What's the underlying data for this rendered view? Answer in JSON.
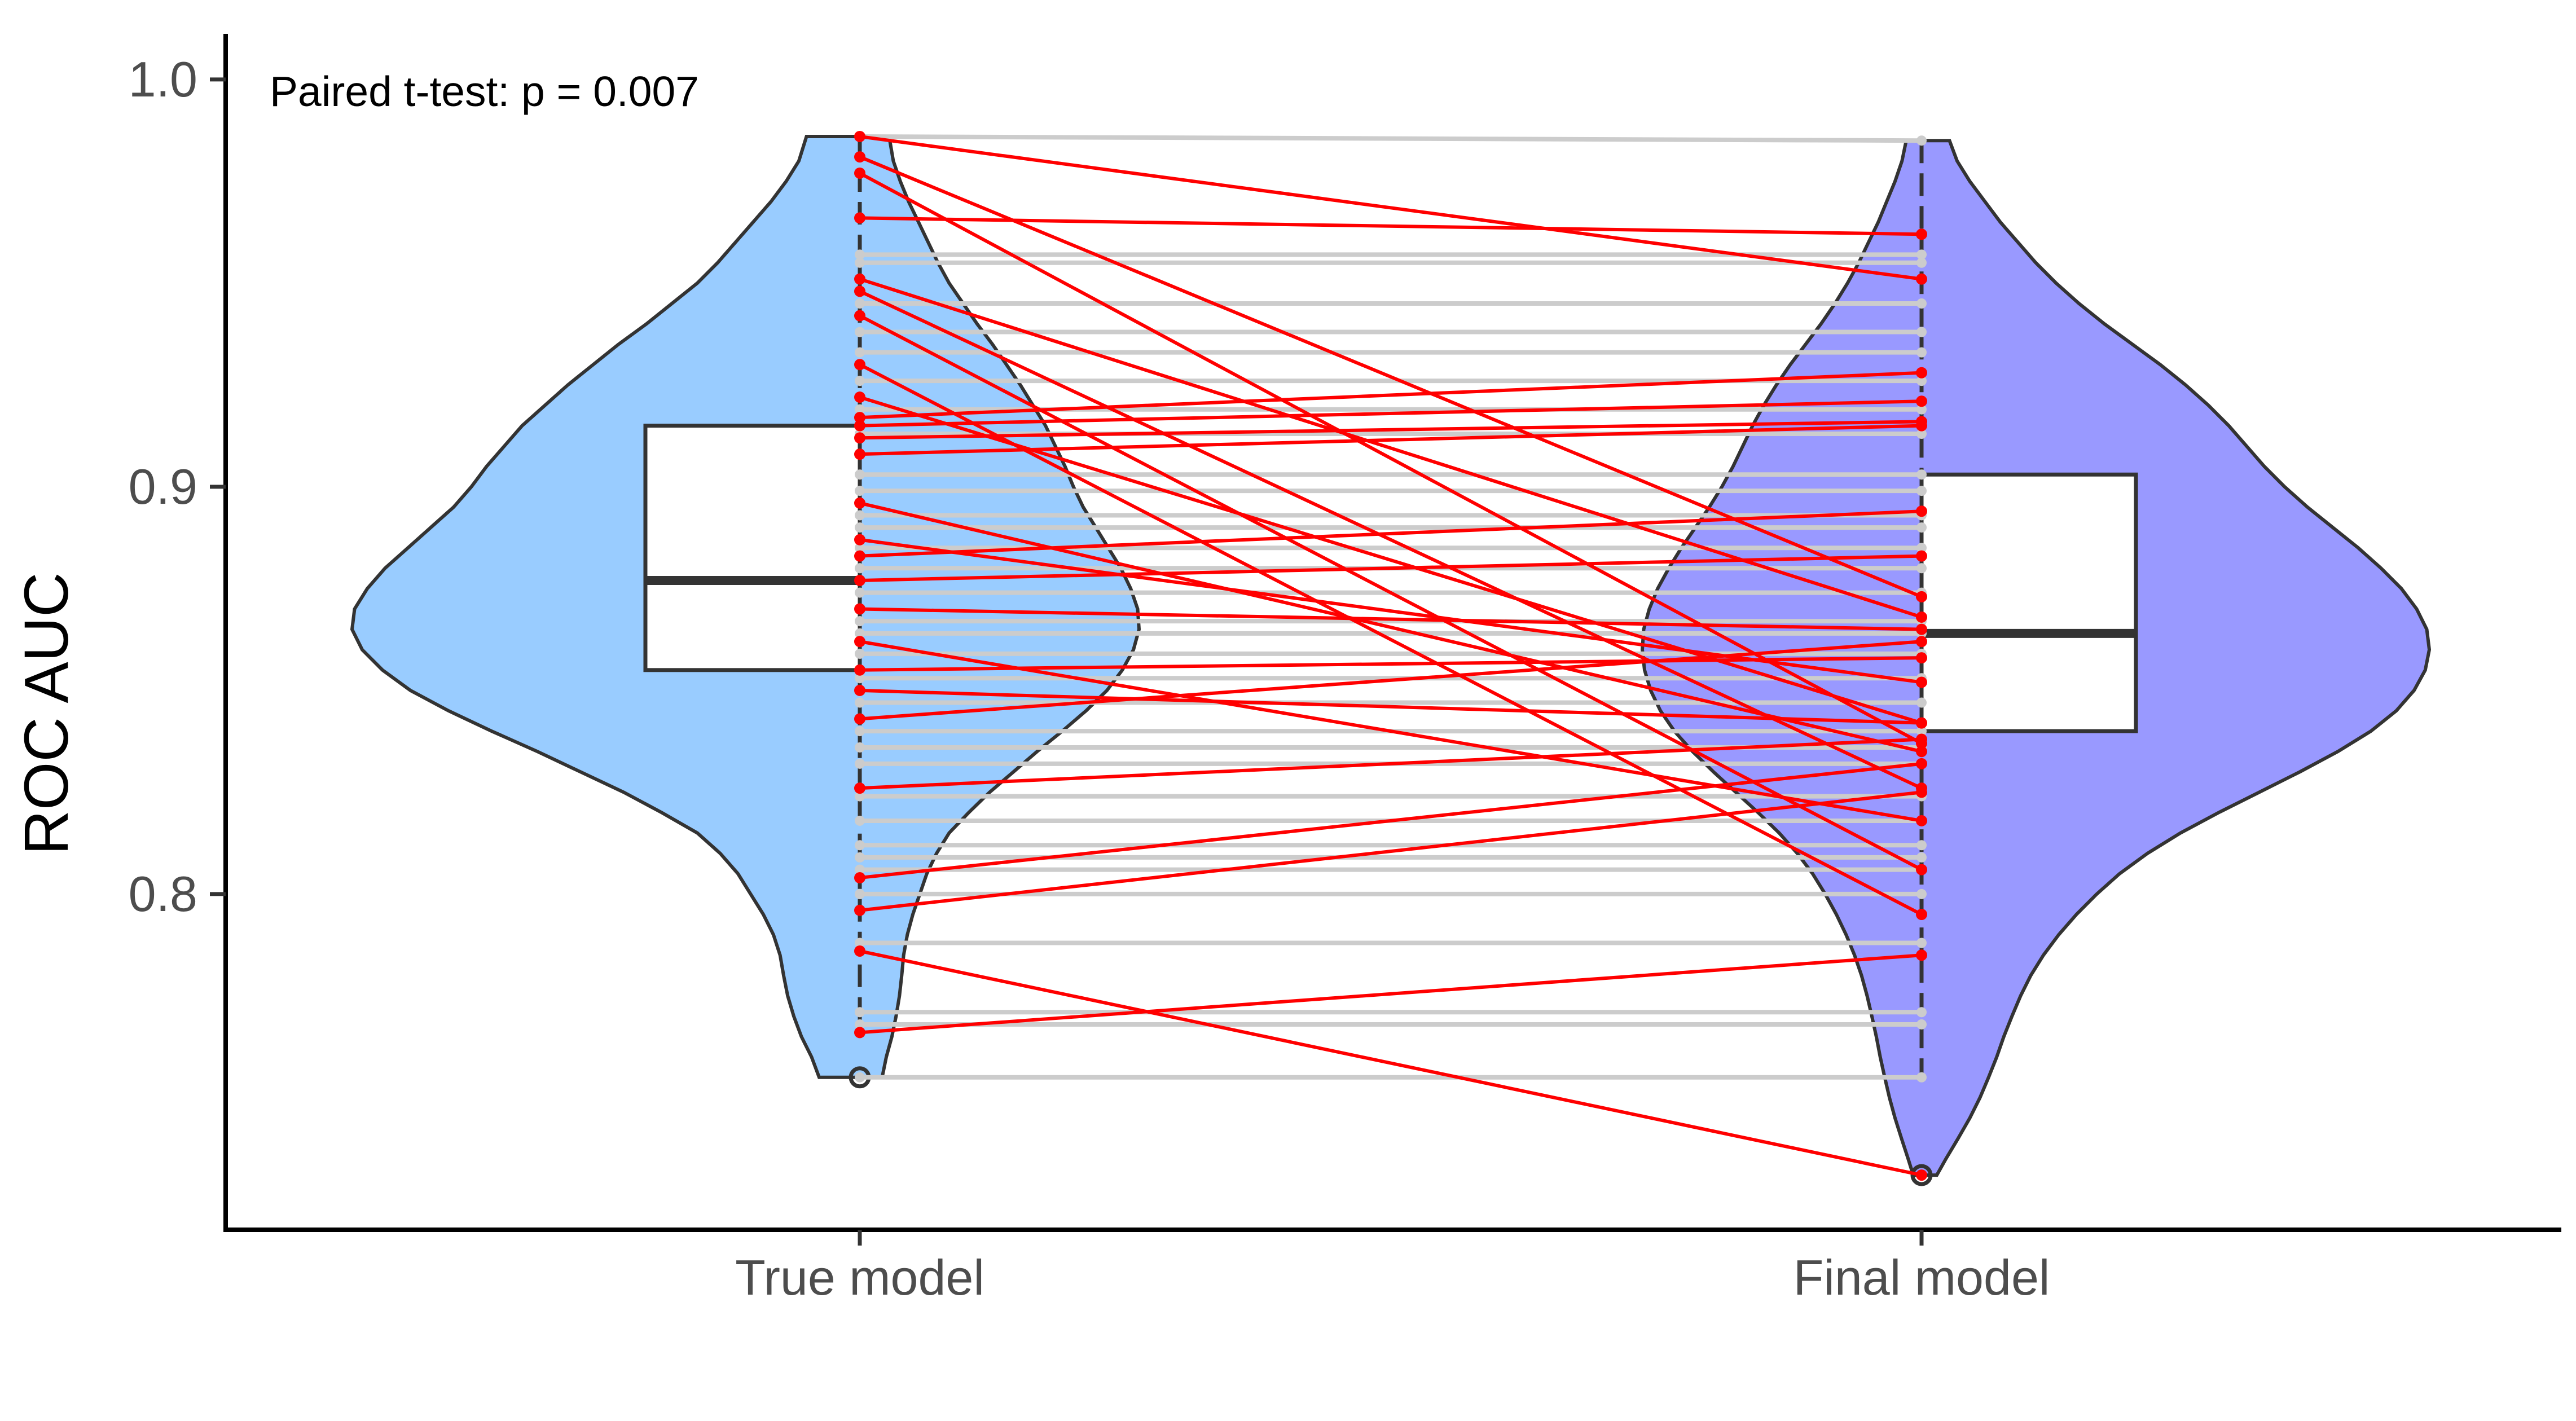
{
  "chart_data": {
    "type": "violin",
    "subtype": "split violin with boxplot and paired lines",
    "title": "",
    "xlabel": "",
    "ylabel": "ROC AUC",
    "ylim": [
      0.72,
      1.015
    ],
    "y_ticks": [
      0.8,
      0.9,
      1.0
    ],
    "y_tick_labels": [
      "0.8",
      "0.9",
      "1.0"
    ],
    "categories": [
      "True model",
      "Final model"
    ],
    "annotation": "Paired t-test: p = 0.007",
    "grid": false,
    "colors": {
      "true_violin": "#99ccff",
      "final_violin": "#9999ff",
      "improved_pair": "#ff0000",
      "unchanged_pair": "#cccccc",
      "outline": "#333333"
    },
    "violins": [
      {
        "name": "True model",
        "range": [
          0.755,
          0.986
        ],
        "density": [
          [
            0.755,
            0.08
          ],
          [
            0.76,
            0.095
          ],
          [
            0.765,
            0.115
          ],
          [
            0.77,
            0.13
          ],
          [
            0.775,
            0.142
          ],
          [
            0.78,
            0.15
          ],
          [
            0.785,
            0.157
          ],
          [
            0.79,
            0.17
          ],
          [
            0.795,
            0.19
          ],
          [
            0.8,
            0.215
          ],
          [
            0.805,
            0.24
          ],
          [
            0.81,
            0.275
          ],
          [
            0.815,
            0.32
          ],
          [
            0.82,
            0.39
          ],
          [
            0.825,
            0.465
          ],
          [
            0.83,
            0.55
          ],
          [
            0.835,
            0.635
          ],
          [
            0.84,
            0.725
          ],
          [
            0.845,
            0.81
          ],
          [
            0.85,
            0.885
          ],
          [
            0.855,
            0.94
          ],
          [
            0.86,
            0.98
          ],
          [
            0.865,
            1.0
          ],
          [
            0.87,
            0.995
          ],
          [
            0.875,
            0.97
          ],
          [
            0.88,
            0.935
          ],
          [
            0.885,
            0.89
          ],
          [
            0.89,
            0.845
          ],
          [
            0.895,
            0.8
          ],
          [
            0.9,
            0.765
          ],
          [
            0.905,
            0.735
          ],
          [
            0.91,
            0.7
          ],
          [
            0.915,
            0.665
          ],
          [
            0.92,
            0.62
          ],
          [
            0.925,
            0.575
          ],
          [
            0.93,
            0.525
          ],
          [
            0.935,
            0.475
          ],
          [
            0.94,
            0.42
          ],
          [
            0.945,
            0.37
          ],
          [
            0.95,
            0.32
          ],
          [
            0.955,
            0.28
          ],
          [
            0.96,
            0.245
          ],
          [
            0.965,
            0.21
          ],
          [
            0.97,
            0.175
          ],
          [
            0.975,
            0.145
          ],
          [
            0.98,
            0.12
          ],
          [
            0.986,
            0.105
          ]
        ],
        "box": {
          "q1": 0.855,
          "median": 0.877,
          "q3": 0.915,
          "whisker_low": 0.766,
          "whisker_high": 0.986
        },
        "outliers": [
          0.755
        ]
      },
      {
        "name": "Final model",
        "range": [
          0.731,
          0.985
        ],
        "density": [
          [
            0.731,
            0.03
          ],
          [
            0.735,
            0.048
          ],
          [
            0.74,
            0.072
          ],
          [
            0.745,
            0.095
          ],
          [
            0.75,
            0.115
          ],
          [
            0.755,
            0.132
          ],
          [
            0.76,
            0.148
          ],
          [
            0.765,
            0.162
          ],
          [
            0.77,
            0.178
          ],
          [
            0.775,
            0.195
          ],
          [
            0.78,
            0.215
          ],
          [
            0.785,
            0.24
          ],
          [
            0.79,
            0.27
          ],
          [
            0.795,
            0.305
          ],
          [
            0.8,
            0.345
          ],
          [
            0.805,
            0.39
          ],
          [
            0.81,
            0.445
          ],
          [
            0.815,
            0.51
          ],
          [
            0.82,
            0.585
          ],
          [
            0.825,
            0.665
          ],
          [
            0.83,
            0.745
          ],
          [
            0.835,
            0.82
          ],
          [
            0.84,
            0.885
          ],
          [
            0.845,
            0.935
          ],
          [
            0.85,
            0.97
          ],
          [
            0.855,
            0.992
          ],
          [
            0.86,
            1.0
          ],
          [
            0.865,
            0.995
          ],
          [
            0.87,
            0.975
          ],
          [
            0.875,
            0.945
          ],
          [
            0.88,
            0.905
          ],
          [
            0.885,
            0.86
          ],
          [
            0.89,
            0.81
          ],
          [
            0.895,
            0.76
          ],
          [
            0.9,
            0.715
          ],
          [
            0.905,
            0.675
          ],
          [
            0.91,
            0.64
          ],
          [
            0.915,
            0.605
          ],
          [
            0.92,
            0.565
          ],
          [
            0.925,
            0.52
          ],
          [
            0.93,
            0.47
          ],
          [
            0.935,
            0.415
          ],
          [
            0.94,
            0.36
          ],
          [
            0.945,
            0.31
          ],
          [
            0.95,
            0.265
          ],
          [
            0.955,
            0.225
          ],
          [
            0.96,
            0.19
          ],
          [
            0.965,
            0.155
          ],
          [
            0.97,
            0.125
          ],
          [
            0.975,
            0.095
          ],
          [
            0.98,
            0.07
          ],
          [
            0.985,
            0.055
          ]
        ],
        "box": {
          "q1": 0.84,
          "median": 0.864,
          "q3": 0.903,
          "whisker_low": 0.755,
          "whisker_high": 0.985
        },
        "outliers": [
          0.731
        ]
      }
    ],
    "pairs": [
      {
        "true": 0.986,
        "final": 0.985,
        "changed": false
      },
      {
        "true": 0.986,
        "final": 0.951,
        "changed": true
      },
      {
        "true": 0.981,
        "final": 0.873,
        "changed": true
      },
      {
        "true": 0.977,
        "final": 0.837,
        "changed": true
      },
      {
        "true": 0.966,
        "final": 0.962,
        "changed": true
      },
      {
        "true": 0.957,
        "final": 0.957,
        "changed": false
      },
      {
        "true": 0.955,
        "final": 0.955,
        "changed": false
      },
      {
        "true": 0.951,
        "final": 0.868,
        "changed": true
      },
      {
        "true": 0.948,
        "final": 0.826,
        "changed": true
      },
      {
        "true": 0.945,
        "final": 0.945,
        "changed": false
      },
      {
        "true": 0.942,
        "final": 0.806,
        "changed": true
      },
      {
        "true": 0.938,
        "final": 0.938,
        "changed": false
      },
      {
        "true": 0.933,
        "final": 0.933,
        "changed": false
      },
      {
        "true": 0.93,
        "final": 0.795,
        "changed": true
      },
      {
        "true": 0.926,
        "final": 0.926,
        "changed": false
      },
      {
        "true": 0.922,
        "final": 0.842,
        "changed": true
      },
      {
        "true": 0.919,
        "final": 0.919,
        "changed": false
      },
      {
        "true": 0.917,
        "final": 0.928,
        "changed": true
      },
      {
        "true": 0.915,
        "final": 0.921,
        "changed": true
      },
      {
        "true": 0.913,
        "final": 0.913,
        "changed": false
      },
      {
        "true": 0.912,
        "final": 0.916,
        "changed": true
      },
      {
        "true": 0.908,
        "final": 0.915,
        "changed": true
      },
      {
        "true": 0.903,
        "final": 0.903,
        "changed": false
      },
      {
        "true": 0.899,
        "final": 0.899,
        "changed": false
      },
      {
        "true": 0.896,
        "final": 0.835,
        "changed": true
      },
      {
        "true": 0.893,
        "final": 0.893,
        "changed": false
      },
      {
        "true": 0.89,
        "final": 0.89,
        "changed": false
      },
      {
        "true": 0.887,
        "final": 0.852,
        "changed": true
      },
      {
        "true": 0.885,
        "final": 0.885,
        "changed": false
      },
      {
        "true": 0.883,
        "final": 0.894,
        "changed": true
      },
      {
        "true": 0.88,
        "final": 0.88,
        "changed": false
      },
      {
        "true": 0.877,
        "final": 0.883,
        "changed": true
      },
      {
        "true": 0.874,
        "final": 0.874,
        "changed": false
      },
      {
        "true": 0.87,
        "final": 0.865,
        "changed": true
      },
      {
        "true": 0.867,
        "final": 0.867,
        "changed": false
      },
      {
        "true": 0.864,
        "final": 0.864,
        "changed": false
      },
      {
        "true": 0.862,
        "final": 0.818,
        "changed": true
      },
      {
        "true": 0.859,
        "final": 0.859,
        "changed": false
      },
      {
        "true": 0.855,
        "final": 0.858,
        "changed": true
      },
      {
        "true": 0.853,
        "final": 0.853,
        "changed": false
      },
      {
        "true": 0.85,
        "final": 0.842,
        "changed": true
      },
      {
        "true": 0.847,
        "final": 0.847,
        "changed": false
      },
      {
        "true": 0.843,
        "final": 0.862,
        "changed": true
      },
      {
        "true": 0.84,
        "final": 0.84,
        "changed": false
      },
      {
        "true": 0.836,
        "final": 0.836,
        "changed": false
      },
      {
        "true": 0.832,
        "final": 0.832,
        "changed": false
      },
      {
        "true": 0.826,
        "final": 0.838,
        "changed": true
      },
      {
        "true": 0.824,
        "final": 0.824,
        "changed": false
      },
      {
        "true": 0.818,
        "final": 0.818,
        "changed": false
      },
      {
        "true": 0.812,
        "final": 0.812,
        "changed": false
      },
      {
        "true": 0.809,
        "final": 0.809,
        "changed": false
      },
      {
        "true": 0.806,
        "final": 0.806,
        "changed": false
      },
      {
        "true": 0.804,
        "final": 0.832,
        "changed": true
      },
      {
        "true": 0.8,
        "final": 0.8,
        "changed": false
      },
      {
        "true": 0.796,
        "final": 0.825,
        "changed": true
      },
      {
        "true": 0.788,
        "final": 0.788,
        "changed": false
      },
      {
        "true": 0.786,
        "final": 0.731,
        "changed": true
      },
      {
        "true": 0.771,
        "final": 0.771,
        "changed": false
      },
      {
        "true": 0.768,
        "final": 0.768,
        "changed": false
      },
      {
        "true": 0.766,
        "final": 0.785,
        "changed": true
      },
      {
        "true": 0.755,
        "final": 0.755,
        "changed": false
      }
    ]
  }
}
